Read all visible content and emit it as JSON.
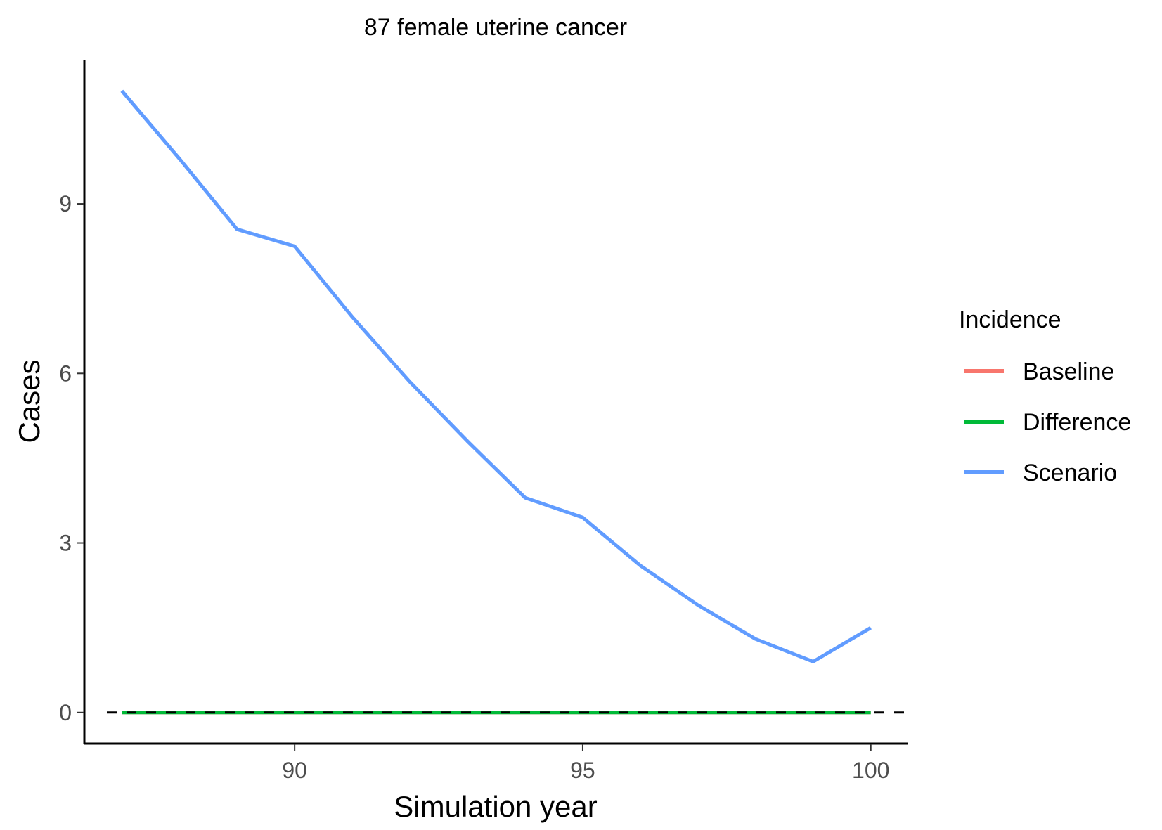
{
  "chart_data": {
    "type": "line",
    "title": "87 female uterine cancer",
    "xlabel": "Simulation year",
    "ylabel": "Cases",
    "xlim": [
      86.35,
      100.65
    ],
    "ylim": [
      -0.55,
      11.55
    ],
    "xticks": [
      90,
      95,
      100
    ],
    "xtick_labels": [
      "90",
      "95",
      "100"
    ],
    "yticks": [
      0,
      3,
      6,
      9
    ],
    "ytick_labels": [
      "0",
      "3",
      "6",
      "9"
    ],
    "grid": false,
    "reference_line": {
      "y": 0,
      "style": "dashed"
    },
    "x": [
      87,
      88,
      89,
      90,
      91,
      92,
      93,
      94,
      95,
      96,
      97,
      98,
      99,
      100
    ],
    "series": [
      {
        "name": "Baseline",
        "color": "#F8766D",
        "values": [
          0,
          0,
          0,
          0,
          0,
          0,
          0,
          0,
          0,
          0,
          0,
          0,
          0,
          0
        ]
      },
      {
        "name": "Difference",
        "color": "#00BA38",
        "values": [
          0,
          0,
          0,
          0,
          0,
          0,
          0,
          0,
          0,
          0,
          0,
          0,
          0,
          0
        ]
      },
      {
        "name": "Scenario",
        "color": "#619CFF",
        "values": [
          11.0,
          9.8,
          8.55,
          8.25,
          7.0,
          5.85,
          4.8,
          3.8,
          3.45,
          2.6,
          1.9,
          1.3,
          0.9,
          1.5
        ]
      }
    ],
    "legend": {
      "title": "Incidence",
      "position": "right",
      "entries": [
        "Baseline",
        "Difference",
        "Scenario"
      ]
    }
  }
}
